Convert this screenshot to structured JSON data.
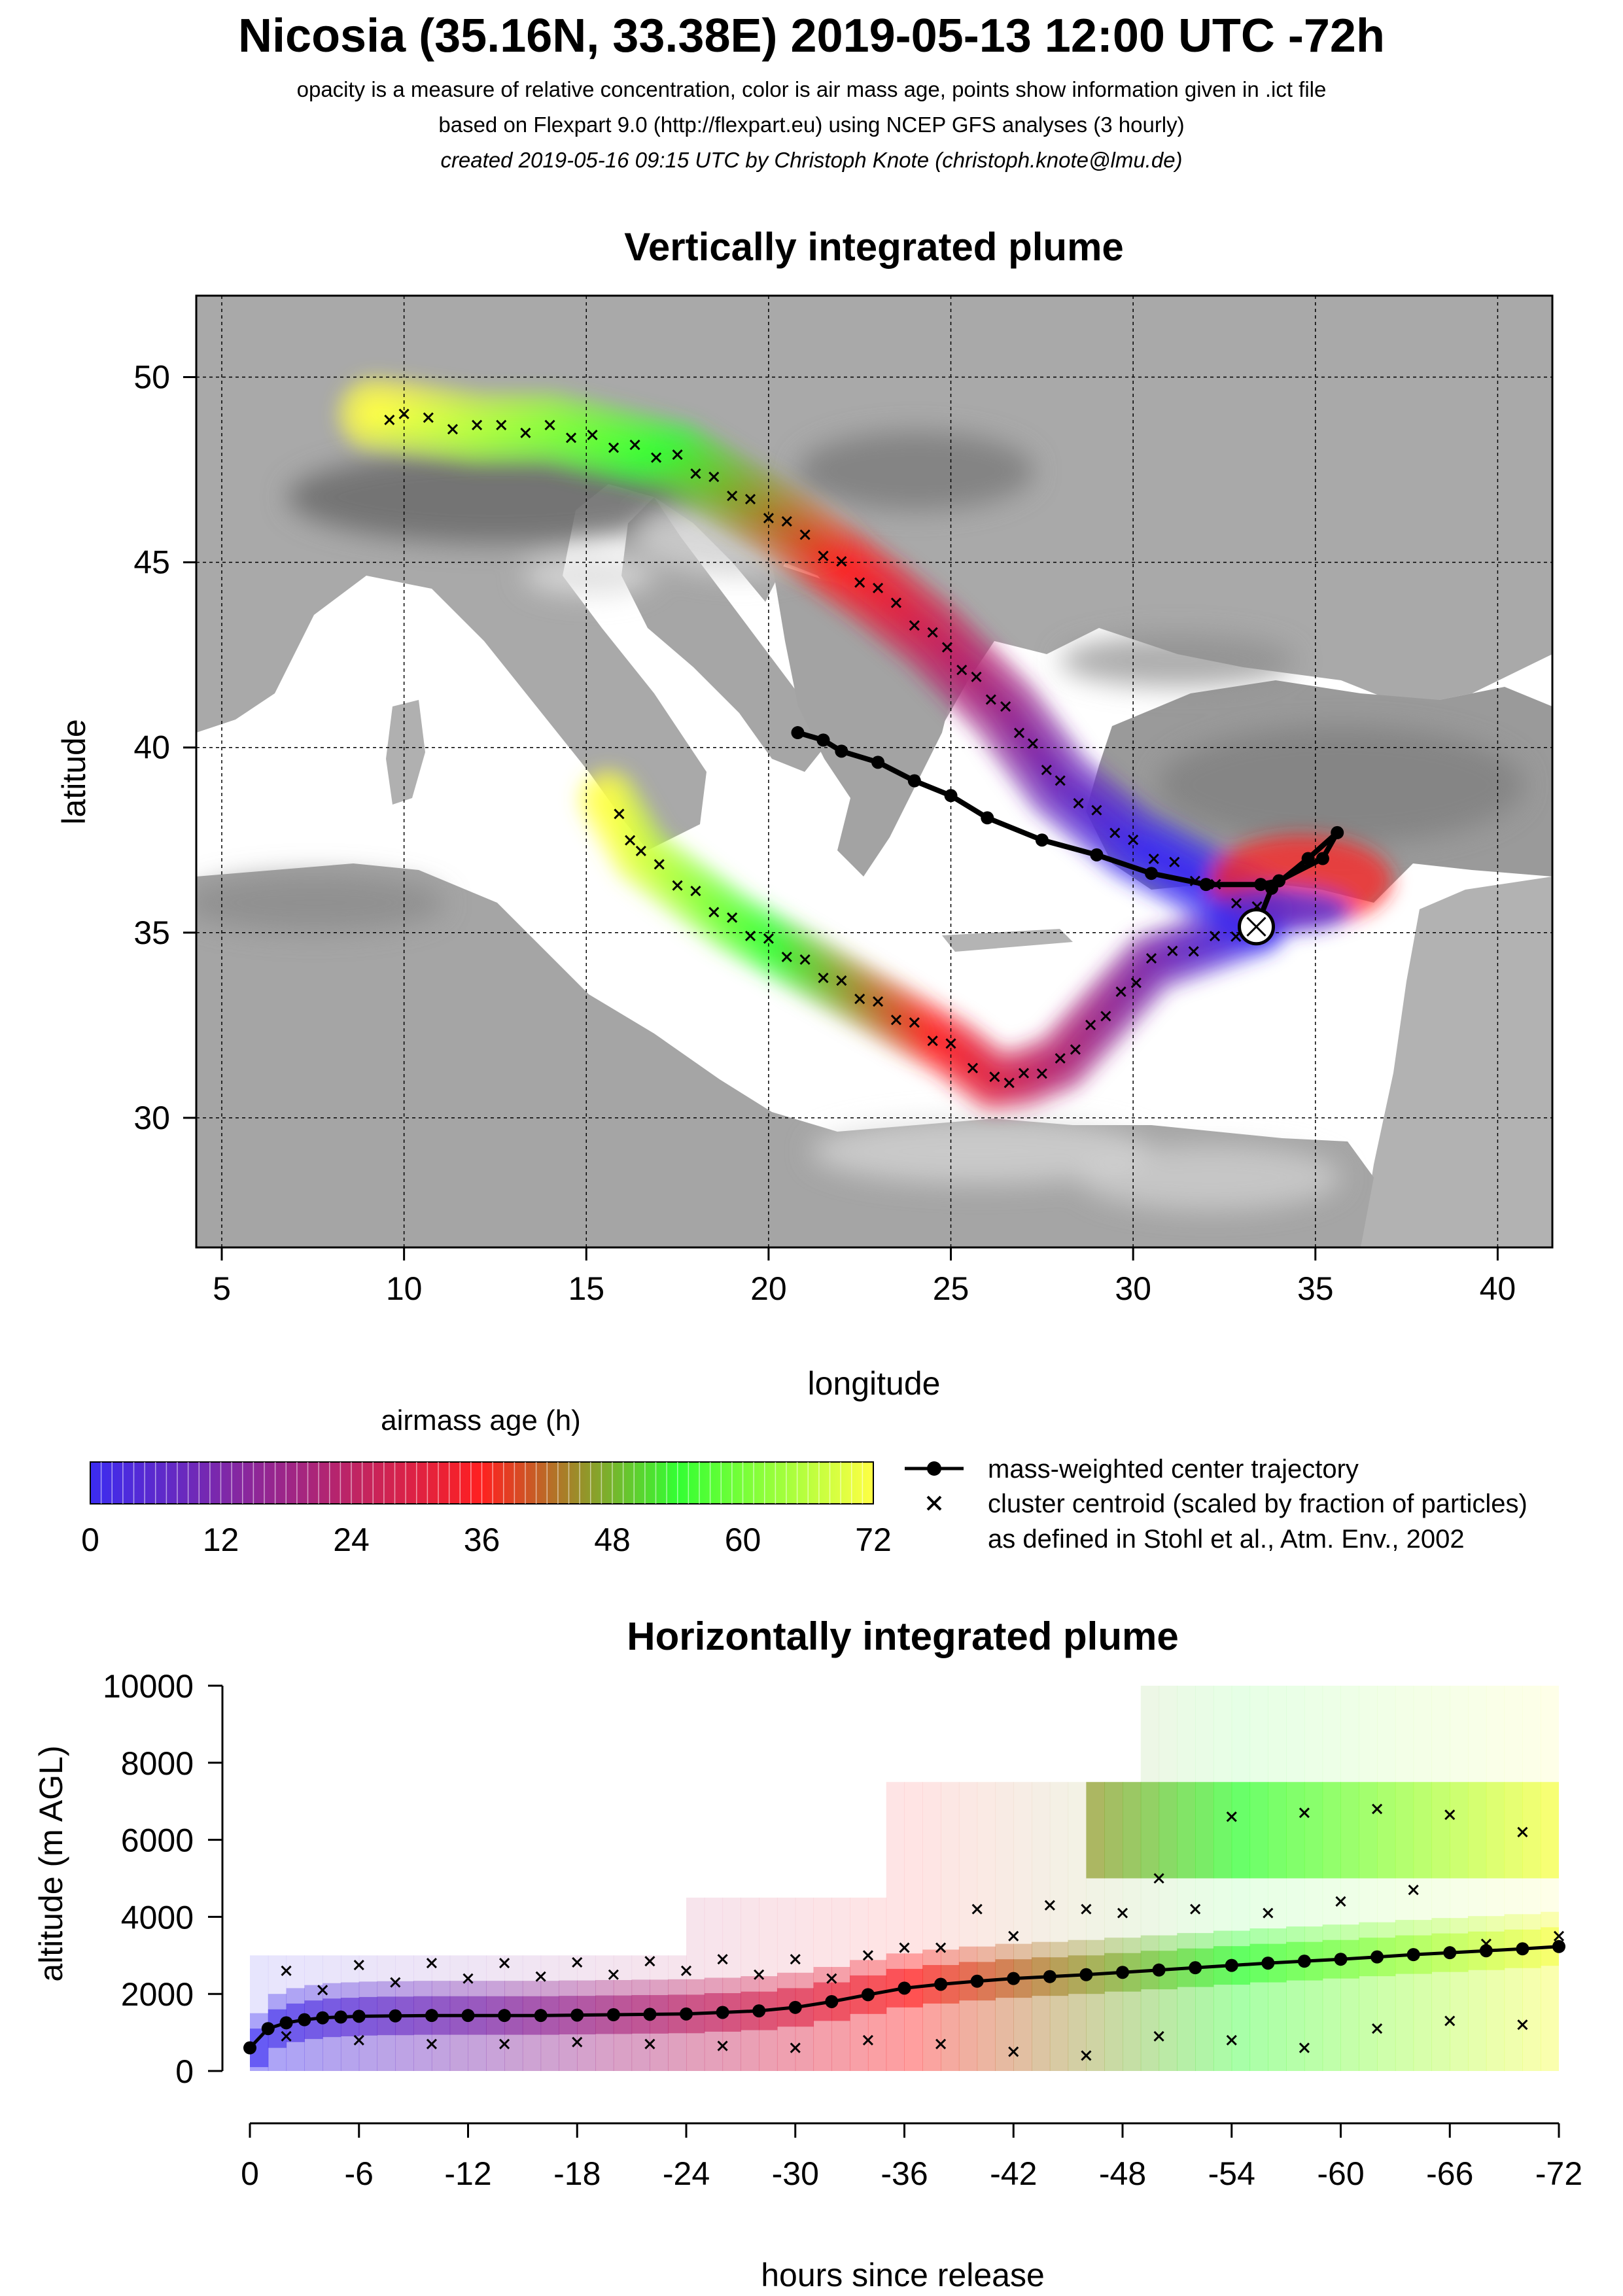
{
  "header": {
    "title": "Nicosia (35.16N, 33.38E) 2019-05-13 12:00 UTC -72h",
    "subtitle1": "opacity is a measure of relative concentration, color is air mass age, points show information given in .ict file",
    "subtitle2": "based on Flexpart 9.0 (http://flexpart.eu) using NCEP GFS analyses (3 hourly)",
    "subtitle3": "created 2019-05-16 09:15 UTC by Christoph Knote (christoph.knote@lmu.de)"
  },
  "colors": {
    "plume_young": "#3b2cf0",
    "plume_mid": "#ff2020",
    "plume_old": "#33ff33",
    "plume_oldest": "#ffff44",
    "land": "#a8a8a8",
    "sea": "#ffffff"
  },
  "legend": {
    "colorbar_title": "airmass age (h)",
    "colorbar_ticks": [
      "0",
      "12",
      "24",
      "36",
      "48",
      "60",
      "72"
    ],
    "line_label": "mass-weighted center trajectory",
    "cross_label_1": "cluster centroid (scaled by fraction of particles)",
    "cross_label_2": "as defined in Stohl et al., Atm. Env., 2002"
  },
  "chart_data": [
    {
      "type": "map",
      "title": "Vertically integrated plume",
      "xlabel": "longitude",
      "ylabel": "latitude",
      "xlim": [
        4.3,
        41.5
      ],
      "ylim": [
        26.5,
        52.2
      ],
      "xticks": [
        5,
        10,
        15,
        20,
        25,
        30,
        35,
        40
      ],
      "yticks": [
        30,
        35,
        40,
        45,
        50
      ],
      "grid": true,
      "release_point": {
        "lon": 33.38,
        "lat": 35.16
      },
      "center_trajectory": {
        "lon": [
          33.4,
          33.8,
          34.8,
          35.6,
          35.2,
          34.0,
          33.5,
          32.0,
          30.5,
          29.0,
          27.5,
          26.0,
          25.0,
          24.0,
          23.0,
          22.0,
          21.5,
          20.8
        ],
        "lat": [
          35.2,
          36.2,
          37.0,
          37.7,
          37.0,
          36.4,
          36.3,
          36.3,
          36.6,
          37.1,
          37.5,
          38.1,
          38.7,
          39.1,
          39.6,
          39.9,
          40.2,
          40.4
        ]
      },
      "plume_branches": [
        {
          "name": "",
          "lon": [
            33.4,
            30.5,
            28.0,
            27.0,
            26.2,
            25.0,
            22.0,
            19.0,
            16.5,
            15.6
          ],
          "lat": [
            35.2,
            34.2,
            31.5,
            31.1,
            31.0,
            31.9,
            33.6,
            35.3,
            37.1,
            38.6
          ]
        },
        {
          "name": "",
          "lon": [
            33.4,
            30.0,
            28.0,
            26.5,
            24.5,
            23.0,
            20.5,
            17.5,
            14.0,
            12.0,
            10.0,
            9.2
          ],
          "lat": [
            35.6,
            37.4,
            39.0,
            41.0,
            43.0,
            44.2,
            46.0,
            47.8,
            48.6,
            48.6,
            48.9,
            49.0
          ]
        }
      ]
    },
    {
      "type": "heatmap",
      "title": "Horizontally integrated plume",
      "xlabel": "hours since release",
      "ylabel": "altitude (m AGL)",
      "xlim": [
        0,
        -72
      ],
      "ylim": [
        0,
        10000
      ],
      "xticks": [
        "0",
        "-6",
        "-12",
        "-18",
        "-24",
        "-30",
        "-36",
        "-42",
        "-48",
        "-54",
        "-60",
        "-66",
        "-72"
      ],
      "yticks": [
        "0",
        "2000",
        "4000",
        "6000",
        "8000",
        "10000"
      ],
      "series": [
        {
          "name": "mass-weighted center trajectory",
          "hours": [
            0,
            -1,
            -2,
            -3,
            -4,
            -5,
            -6,
            -8,
            -10,
            -12,
            -14,
            -16,
            -18,
            -20,
            -22,
            -24,
            -26,
            -28,
            -30,
            -32,
            -34,
            -36,
            -38,
            -40,
            -42,
            -44,
            -46,
            -48,
            -50,
            -52,
            -54,
            -56,
            -58,
            -60,
            -62,
            -64,
            -66,
            -68,
            -70,
            -72
          ],
          "altitude": [
            600,
            1100,
            1250,
            1330,
            1380,
            1400,
            1420,
            1430,
            1440,
            1440,
            1440,
            1440,
            1450,
            1460,
            1470,
            1480,
            1520,
            1560,
            1650,
            1800,
            1980,
            2150,
            2250,
            2330,
            2400,
            2450,
            2500,
            2560,
            2620,
            2680,
            2740,
            2800,
            2850,
            2900,
            2960,
            3020,
            3070,
            3120,
            3170,
            3230
          ]
        }
      ],
      "clusters": [
        {
          "name": "",
          "hours": [
            -2,
            -6,
            -10,
            -14,
            -18,
            -22,
            -26,
            -30,
            -34,
            -38,
            -42,
            -46,
            -50,
            -54,
            -58,
            -62,
            -66,
            -70
          ],
          "altitude": [
            2600,
            2750,
            2800,
            2800,
            2820,
            2850,
            2900,
            2900,
            3000,
            3200,
            3500,
            4200,
            5000,
            6600,
            6700,
            6800,
            6650,
            6200
          ]
        },
        {
          "name": "",
          "hours": [
            -2,
            -6,
            -10,
            -14,
            -18,
            -22,
            -26,
            -30,
            -34,
            -38,
            -42,
            -46,
            -50,
            -54,
            -58,
            -62,
            -66,
            -70
          ],
          "altitude": [
            900,
            800,
            700,
            700,
            750,
            700,
            650,
            600,
            800,
            700,
            500,
            400,
            900,
            800,
            600,
            1100,
            1300,
            1200
          ]
        },
        {
          "name": "",
          "hours": [
            -4,
            -8,
            -12,
            -16,
            -20,
            -24,
            -28,
            -32,
            -36,
            -40,
            -44,
            -48,
            -52,
            -56,
            -60,
            -64,
            -68,
            -72
          ],
          "altitude": [
            2100,
            2300,
            2400,
            2450,
            2500,
            2600,
            2500,
            2400,
            3200,
            4200,
            4300,
            4100,
            4200,
            4100,
            4400,
            4700,
            3300,
            3500
          ]
        }
      ]
    }
  ]
}
